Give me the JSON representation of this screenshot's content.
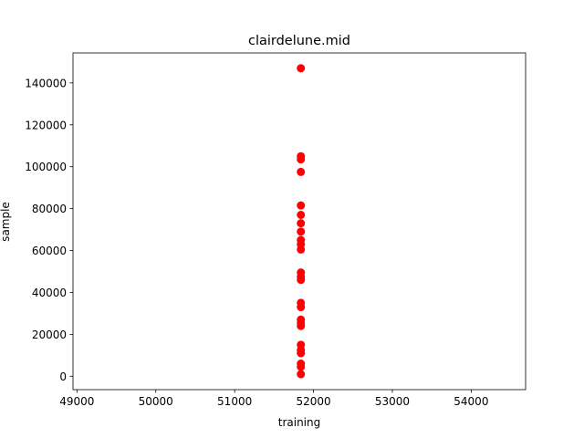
{
  "chart_data": {
    "type": "scatter",
    "title": "clairdelune.mid",
    "xlabel": "training",
    "ylabel": "sample",
    "xlim": [
      48950,
      54690
    ],
    "ylim": [
      -6400,
      154300
    ],
    "grid": false,
    "marker_color": "#ff0000",
    "xticks": [
      49000,
      50000,
      51000,
      52000,
      53000,
      54000
    ],
    "yticks": [
      0,
      20000,
      40000,
      60000,
      80000,
      100000,
      120000,
      140000
    ],
    "points": [
      {
        "x": 51840,
        "y": 147000
      },
      {
        "x": 51840,
        "y": 105000
      },
      {
        "x": 51840,
        "y": 103500
      },
      {
        "x": 51840,
        "y": 97500
      },
      {
        "x": 51840,
        "y": 81500
      },
      {
        "x": 51840,
        "y": 77000
      },
      {
        "x": 51840,
        "y": 73000
      },
      {
        "x": 51840,
        "y": 69000
      },
      {
        "x": 51840,
        "y": 65000
      },
      {
        "x": 51840,
        "y": 63000
      },
      {
        "x": 51840,
        "y": 60500
      },
      {
        "x": 51840,
        "y": 49500
      },
      {
        "x": 51840,
        "y": 47500
      },
      {
        "x": 51840,
        "y": 46000
      },
      {
        "x": 51840,
        "y": 35000
      },
      {
        "x": 51840,
        "y": 33000
      },
      {
        "x": 51840,
        "y": 27000
      },
      {
        "x": 51840,
        "y": 25500
      },
      {
        "x": 51840,
        "y": 24000
      },
      {
        "x": 51840,
        "y": 15000
      },
      {
        "x": 51840,
        "y": 12500
      },
      {
        "x": 51840,
        "y": 11000
      },
      {
        "x": 51840,
        "y": 6000
      },
      {
        "x": 51840,
        "y": 4500
      },
      {
        "x": 51840,
        "y": 1000
      }
    ]
  }
}
